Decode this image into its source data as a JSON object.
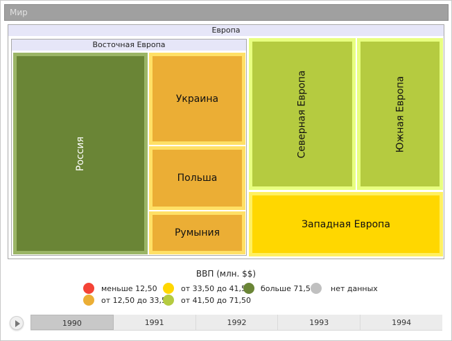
{
  "title": "Мир",
  "treemap": {
    "europe": {
      "label": "Европа",
      "eastern": {
        "label": "Восточная Европа",
        "russia": {
          "label": "Россия",
          "color": "#6a8536",
          "border": "#9bb566"
        },
        "ukraine": {
          "label": "Украина",
          "color": "#ebae35",
          "border": "#ffe066"
        },
        "poland": {
          "label": "Польша",
          "color": "#ebae35",
          "border": "#ffe066"
        },
        "romania": {
          "label": "Румыния",
          "color": "#ebae35",
          "border": "#ffe066"
        }
      },
      "northern": {
        "label": "Северная Европа",
        "color": "#b5cb40",
        "border": "#e8ff80"
      },
      "southern": {
        "label": "Южная Европа",
        "color": "#b5cb40",
        "border": "#e8ff80"
      },
      "western": {
        "label": "Западная Европа",
        "color": "#ffd700",
        "border": "#fff060"
      }
    }
  },
  "legend": {
    "title": "ВВП (млн. $$)",
    "items": [
      {
        "label": "меньше 12,50",
        "color": "#f44336"
      },
      {
        "label": "от 12,50 до 33,50",
        "color": "#ebae35"
      },
      {
        "label": "от 33,50 до 41,50",
        "color": "#ffd700"
      },
      {
        "label": "от 41,50 до 71,50",
        "color": "#b5cb40"
      },
      {
        "label": "больше 71,50",
        "color": "#6a8536"
      },
      {
        "label": "нет данных",
        "color": "#c0c0c0"
      }
    ]
  },
  "timeline": {
    "years": [
      "1990",
      "1991",
      "1992",
      "1993",
      "1994"
    ],
    "selected": "1990"
  }
}
